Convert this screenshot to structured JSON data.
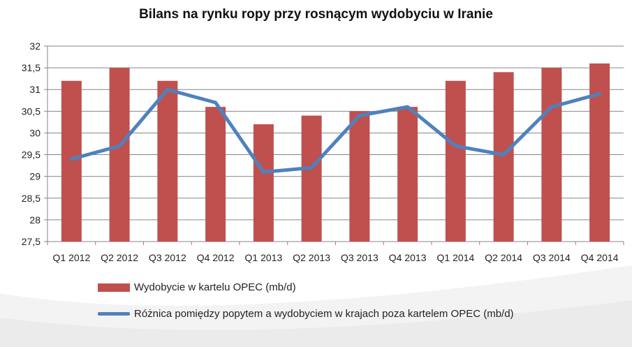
{
  "chart_data": {
    "type": "bar",
    "title": "Bilans na rynku ropy przy rosnącym wydobyciu w Iranie",
    "xlabel": "",
    "ylabel": "",
    "categories": [
      "Q1 2012",
      "Q2 2012",
      "Q3 2012",
      "Q4 2012",
      "Q1 2013",
      "Q2 2013",
      "Q3 2013",
      "Q4 2013",
      "Q1 2014",
      "Q2 2014",
      "Q3 2014",
      "Q4 2014"
    ],
    "y_ticks": [
      "27,5",
      "28",
      "28,5",
      "29",
      "29,5",
      "30",
      "30,5",
      "31",
      "31,5",
      "32"
    ],
    "ylim": [
      27.5,
      32
    ],
    "grid": true,
    "legend_position": "bottom",
    "series": [
      {
        "name": "Wydobycie w kartelu OPEC (mb/d)",
        "kind": "bar",
        "color": "#c0504d",
        "values": [
          31.2,
          31.5,
          31.2,
          30.6,
          30.2,
          30.4,
          30.5,
          30.6,
          31.2,
          31.4,
          31.5,
          31.6
        ]
      },
      {
        "name": "Różnica pomiędzy popytem a wydobyciem w krajach poza kartelem OPEC (mb/d)",
        "kind": "line",
        "color": "#4f81bd",
        "values": [
          29.4,
          29.7,
          31.0,
          30.7,
          29.1,
          29.2,
          30.4,
          30.6,
          29.7,
          29.5,
          30.6,
          30.9
        ]
      }
    ]
  }
}
